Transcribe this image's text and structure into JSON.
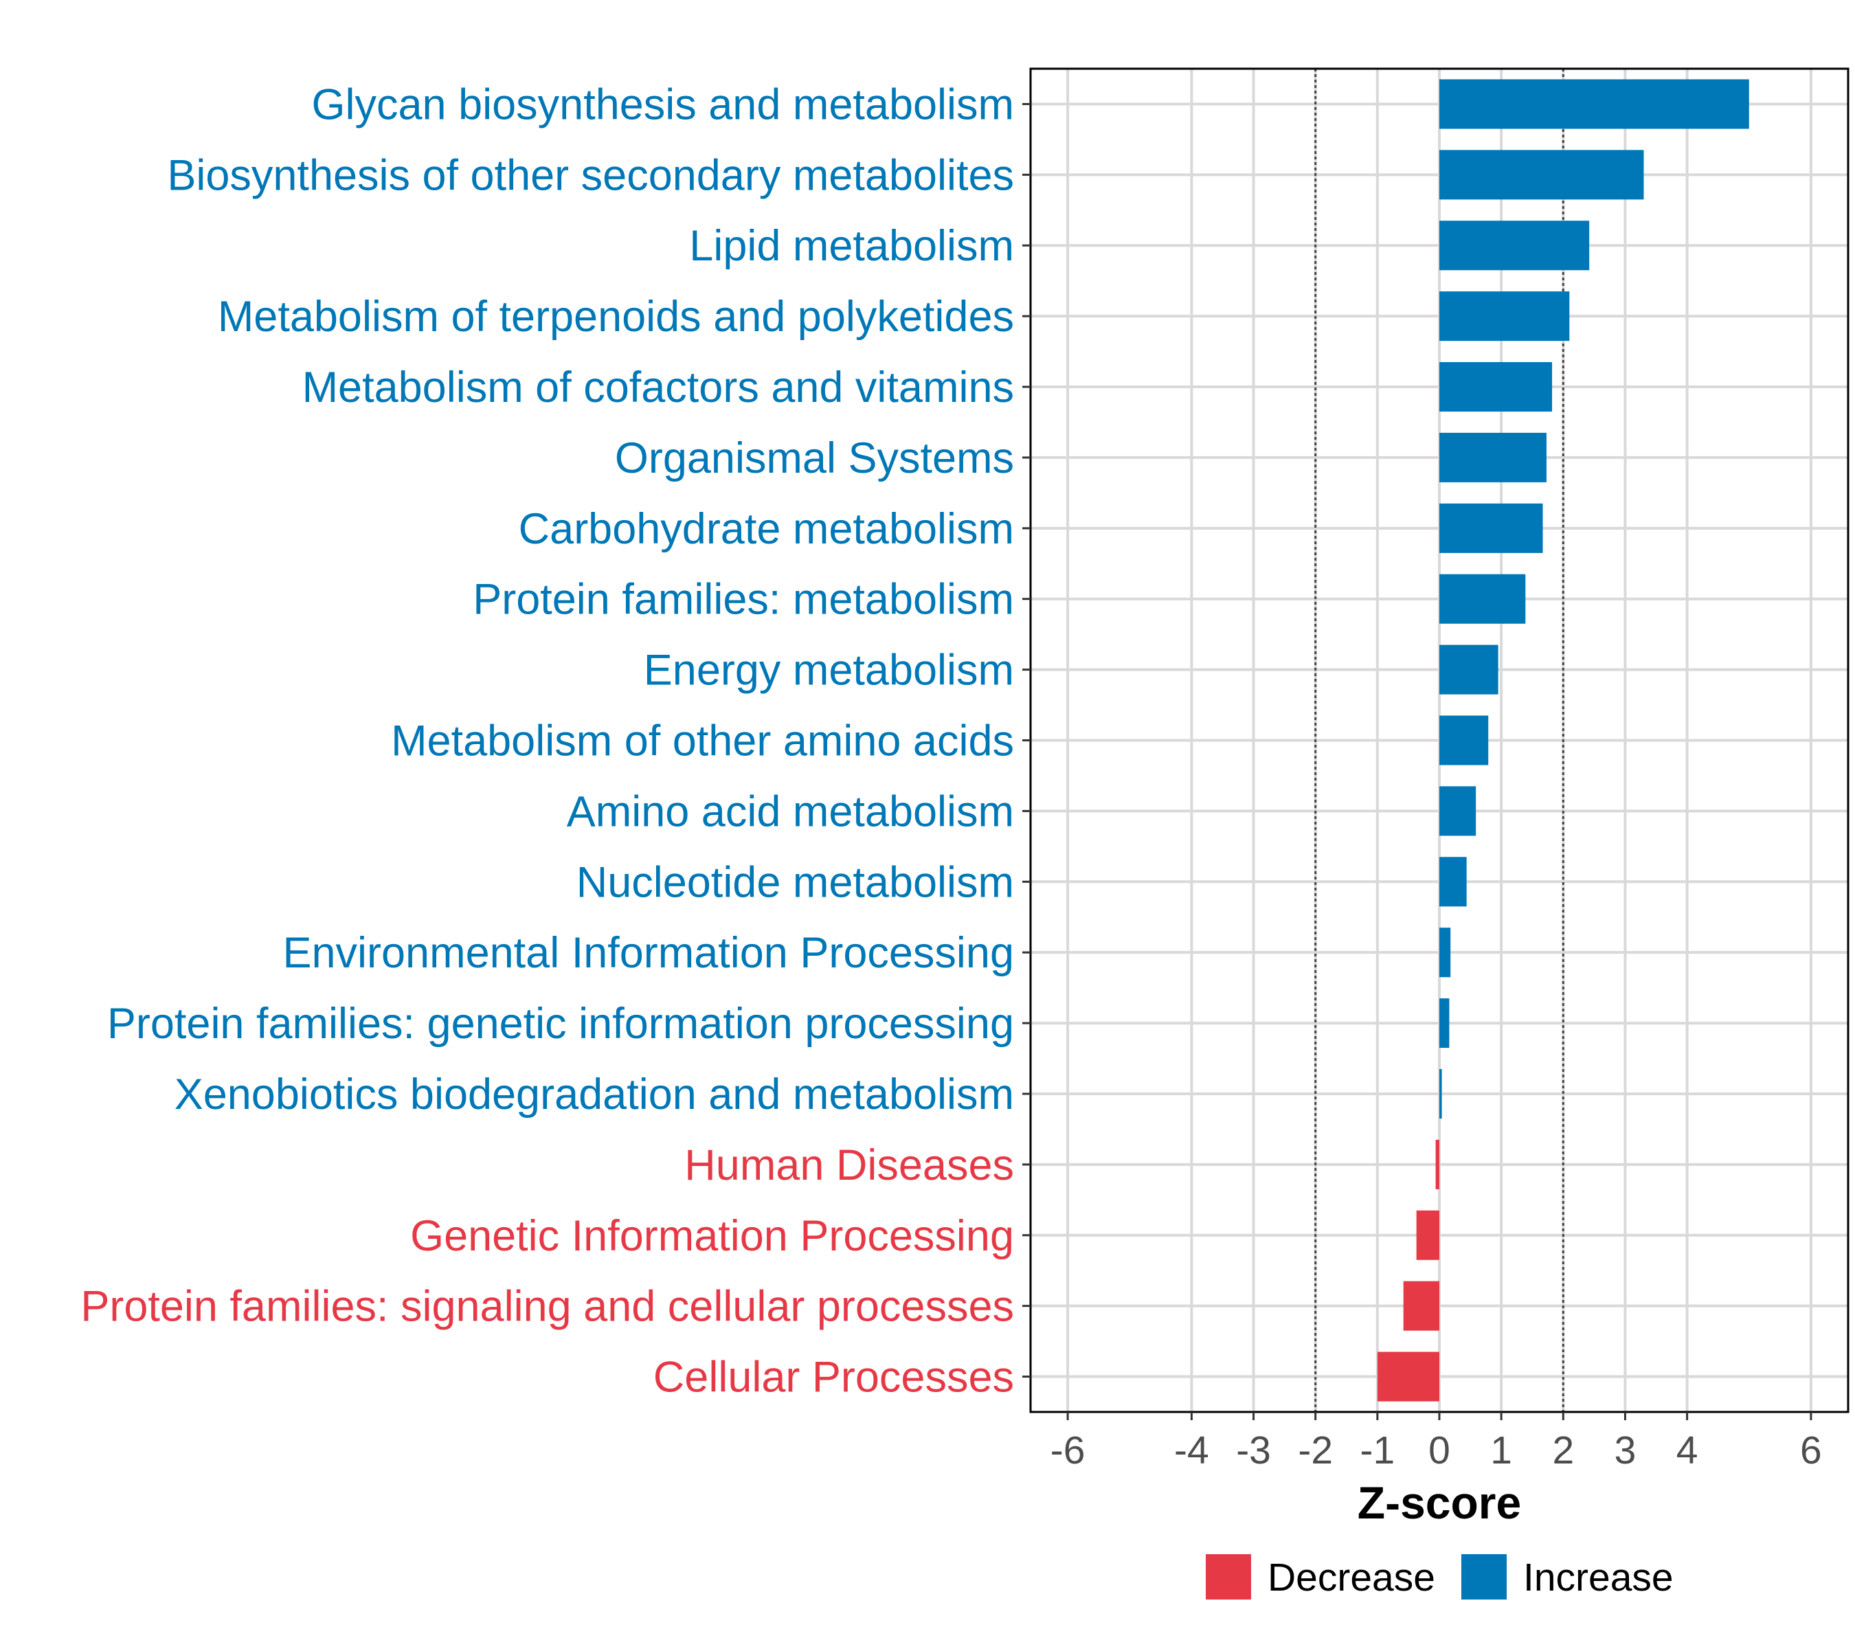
{
  "chart_data": {
    "type": "bar",
    "orientation": "horizontal",
    "title": "",
    "xlabel": "Z-score",
    "ylabel": "",
    "xlim": [
      -6.6,
      6.6
    ],
    "xticks": [
      -6,
      -4,
      -3,
      -2,
      -1,
      0,
      1,
      2,
      3,
      4,
      6
    ],
    "reference_lines": [
      -2,
      2
    ],
    "grid": true,
    "categories": [
      "Glycan biosynthesis and metabolism",
      "Biosynthesis of other secondary metabolites",
      "Lipid metabolism",
      "Metabolism of terpenoids and polyketides",
      "Metabolism of cofactors and vitamins",
      "Organismal Systems",
      "Carbohydrate metabolism",
      "Protein families: metabolism",
      "Energy metabolism",
      "Metabolism of other amino acids",
      "Amino acid metabolism",
      "Nucleotide metabolism",
      "Environmental Information Processing",
      "Protein families: genetic information processing",
      "Xenobiotics biodegradation and metabolism",
      "Human Diseases",
      "Genetic Information Processing",
      "Protein families: signaling and cellular processes",
      "Cellular Processes"
    ],
    "values": [
      5.0,
      3.3,
      2.42,
      2.1,
      1.82,
      1.73,
      1.67,
      1.39,
      0.95,
      0.79,
      0.59,
      0.44,
      0.18,
      0.16,
      0.04,
      -0.06,
      -0.37,
      -0.58,
      -1.0
    ],
    "groups": [
      "Increase",
      "Increase",
      "Increase",
      "Increase",
      "Increase",
      "Increase",
      "Increase",
      "Increase",
      "Increase",
      "Increase",
      "Increase",
      "Increase",
      "Increase",
      "Increase",
      "Increase",
      "Decrease",
      "Decrease",
      "Decrease",
      "Decrease"
    ],
    "legend": {
      "position": "bottom",
      "items": [
        {
          "label": "Decrease",
          "color": "#E63946"
        },
        {
          "label": "Increase",
          "color": "#0077B6"
        }
      ]
    },
    "colors": {
      "Decrease": "#E63946",
      "Increase": "#0077B6"
    }
  }
}
